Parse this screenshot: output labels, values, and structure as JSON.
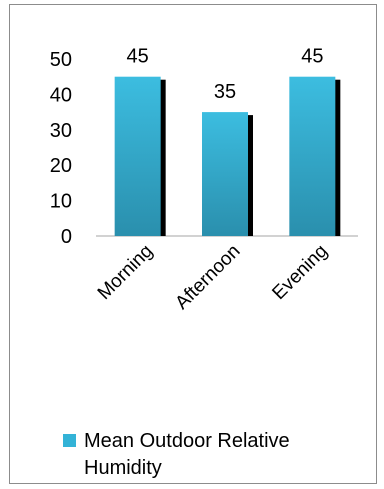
{
  "chart_data": {
    "type": "bar",
    "categories": [
      "Morning",
      "Afternoon",
      "Evening"
    ],
    "series": [
      {
        "name": "Mean Outdoor Relative Humidity",
        "values": [
          45,
          35,
          45
        ]
      }
    ],
    "data_labels": [
      "45",
      "35",
      "45"
    ],
    "ylim": [
      0,
      50
    ],
    "yticks": [
      0,
      10,
      20,
      30,
      40,
      50
    ],
    "grid": false,
    "legend": "bottom",
    "color": "#33b3d7",
    "shadow_color": "#000000",
    "title": "",
    "xlabel": "",
    "ylabel": ""
  }
}
